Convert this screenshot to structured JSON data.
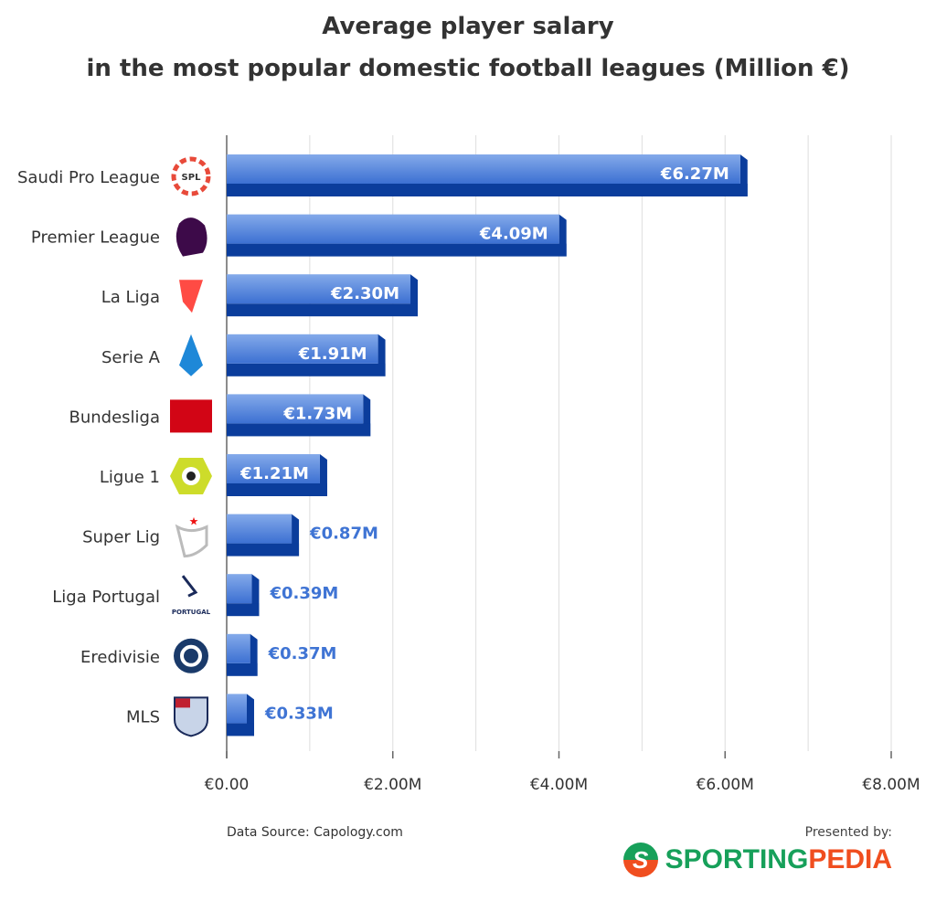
{
  "chart_data": {
    "type": "bar",
    "orientation": "horizontal",
    "title": "Average player salary",
    "subtitle": "in the most popular domestic football leagues (Million €)",
    "categories": [
      "Saudi Pro League",
      "Premier League",
      "La Liga",
      "Serie A",
      "Bundesliga",
      "Ligue 1",
      "Super Lig",
      "Liga Portugal",
      "Eredivisie",
      "MLS"
    ],
    "values": [
      6.27,
      4.09,
      2.3,
      1.91,
      1.73,
      1.21,
      0.87,
      0.39,
      0.37,
      0.33
    ],
    "data_labels": [
      "€6.27M",
      "€4.09M",
      "€2.30M",
      "€1.91M",
      "€1.73M",
      "€1.21M",
      "€0.87M",
      "€0.39M",
      "€0.37M",
      "€0.33M"
    ],
    "xlim": [
      0,
      8
    ],
    "x_ticks": [
      0,
      2,
      4,
      6,
      8
    ],
    "x_tick_labels": [
      "€0.00",
      "€2.00M",
      "€4.00M",
      "€6.00M",
      "€8.00M"
    ],
    "grid": "vertical, every 1M",
    "colors": {
      "bar_top": "#7fa6e6",
      "bar_bottom": "#3f74d4",
      "bar_shadow": "#0b3d9c",
      "label_outside": "#3f74d4"
    },
    "icons": [
      "spl-logo",
      "premier-league-lion-logo",
      "la-liga-logo",
      "serie-a-logo",
      "bundesliga-logo",
      "ligue-1-logo",
      "super-lig-logo",
      "liga-portugal-logo",
      "eredivisie-logo",
      "mls-logo"
    ]
  },
  "footer": {
    "source": "Data Source: Capology.com",
    "presented_by": "Presented by:",
    "brand_part1": "SPORTING",
    "brand_part2": "PEDIA",
    "brand_mark": "S"
  }
}
